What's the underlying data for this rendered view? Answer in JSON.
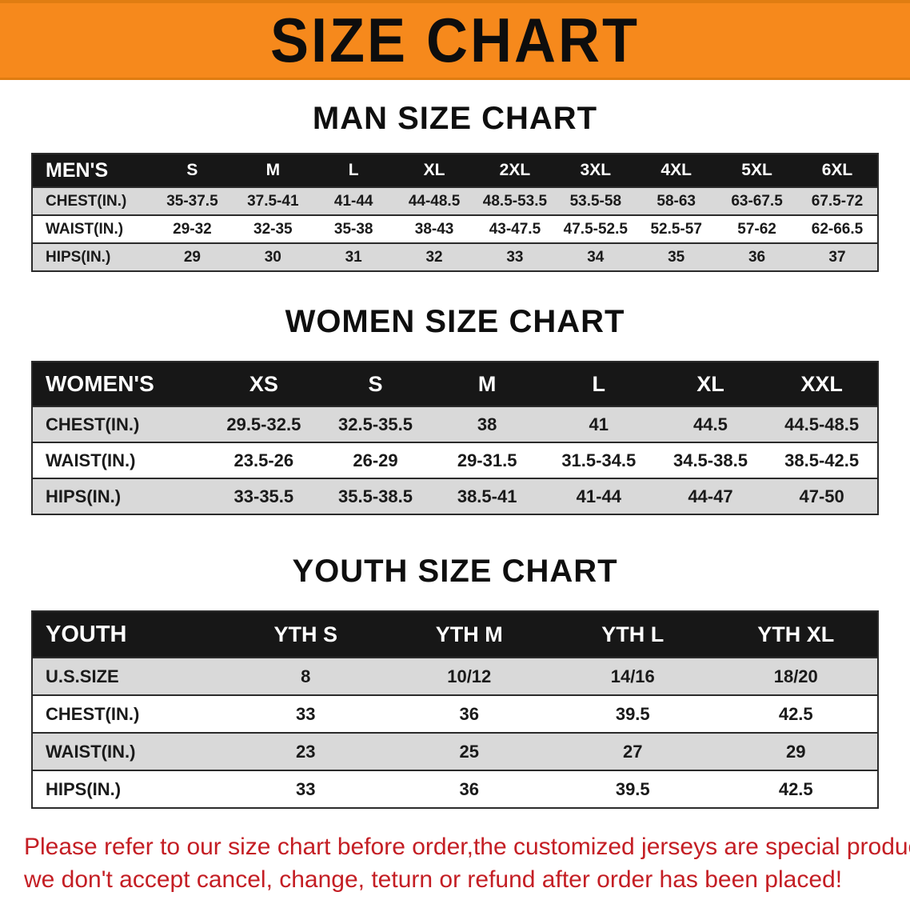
{
  "banner": {
    "title": "SIZE CHART"
  },
  "colors": {
    "banner_bg": "#F6891C",
    "table_header_bg": "#171717",
    "row_alt_gray": "#D9D9D9",
    "note_text": "#C41E24"
  },
  "sections": [
    {
      "heading": "MAN SIZE CHART",
      "table": {
        "header": [
          "MEN'S",
          "S",
          "M",
          "L",
          "XL",
          "2XL",
          "3XL",
          "4XL",
          "5XL",
          "6XL"
        ],
        "rows": [
          [
            "CHEST(IN.)",
            "35-37.5",
            "37.5-41",
            "41-44",
            "44-48.5",
            "48.5-53.5",
            "53.5-58",
            "58-63",
            "63-67.5",
            "67.5-72"
          ],
          [
            "WAIST(IN.)",
            "29-32",
            "32-35",
            "35-38",
            "38-43",
            "43-47.5",
            "47.5-52.5",
            "52.5-57",
            "57-62",
            "62-66.5"
          ],
          [
            "HIPS(IN.)",
            "29",
            "30",
            "31",
            "32",
            "33",
            "34",
            "35",
            "36",
            "37"
          ]
        ]
      }
    },
    {
      "heading": "WOMEN SIZE CHART",
      "table": {
        "header": [
          "WOMEN'S",
          "XS",
          "S",
          "M",
          "L",
          "XL",
          "XXL"
        ],
        "rows": [
          [
            "CHEST(IN.)",
            "29.5-32.5",
            "32.5-35.5",
            "38",
            "41",
            "44.5",
            "44.5-48.5"
          ],
          [
            "WAIST(IN.)",
            "23.5-26",
            "26-29",
            "29-31.5",
            "31.5-34.5",
            "34.5-38.5",
            "38.5-42.5"
          ],
          [
            "HIPS(IN.)",
            "33-35.5",
            "35.5-38.5",
            "38.5-41",
            "41-44",
            "44-47",
            "47-50"
          ]
        ]
      }
    },
    {
      "heading": "YOUTH SIZE CHART",
      "table": {
        "header": [
          "YOUTH",
          "YTH S",
          "YTH M",
          "YTH L",
          "YTH XL"
        ],
        "rows": [
          [
            "U.S.SIZE",
            "8",
            "10/12",
            "14/16",
            "18/20"
          ],
          [
            "CHEST(IN.)",
            "33",
            "36",
            "39.5",
            "42.5"
          ],
          [
            "WAIST(IN.)",
            "23",
            "25",
            "27",
            "29"
          ],
          [
            "HIPS(IN.)",
            "33",
            "36",
            "39.5",
            "42.5"
          ]
        ]
      }
    }
  ],
  "footer": {
    "line1": "Please refer to our size chart before order,the customized jerseys are special products,",
    "line2": "we don't accept cancel, change, teturn or refund after order has been placed!"
  }
}
